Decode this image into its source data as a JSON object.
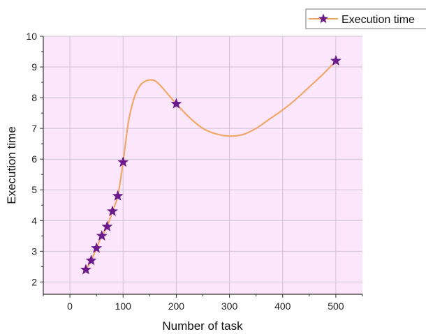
{
  "chart_data": {
    "type": "line",
    "title": "",
    "xlabel": "Number of task",
    "ylabel": "Execution time",
    "xlim": [
      -50,
      550
    ],
    "ylim": [
      1.6,
      10
    ],
    "xticks": [
      0,
      100,
      200,
      300,
      400,
      500
    ],
    "yticks": [
      2,
      3,
      4,
      5,
      6,
      7,
      8,
      9,
      10
    ],
    "grid": true,
    "legend_position": "top-right",
    "colors": {
      "plot_background": "#fbe6fb",
      "grid": "#cfc3d6",
      "line": "#f0a868",
      "marker": "#6a1a8a"
    },
    "series": [
      {
        "name": "Execution time",
        "marker": "star",
        "x": [
          30,
          40,
          50,
          60,
          70,
          80,
          90,
          100,
          200,
          500
        ],
        "y": [
          2.4,
          2.7,
          3.1,
          3.5,
          3.8,
          4.3,
          4.8,
          5.9,
          7.8,
          9.2
        ]
      }
    ],
    "curve": {
      "x": [
        100,
        110,
        120,
        130,
        140,
        150,
        160,
        170,
        180,
        190,
        200,
        225,
        250,
        275,
        300,
        325,
        350,
        375,
        400,
        425,
        450,
        475,
        500
      ],
      "y": [
        5.9,
        7.2,
        7.95,
        8.35,
        8.52,
        8.58,
        8.55,
        8.4,
        8.2,
        8.0,
        7.8,
        7.35,
        7.0,
        6.82,
        6.75,
        6.8,
        7.0,
        7.3,
        7.6,
        7.95,
        8.35,
        8.75,
        9.2
      ]
    }
  }
}
